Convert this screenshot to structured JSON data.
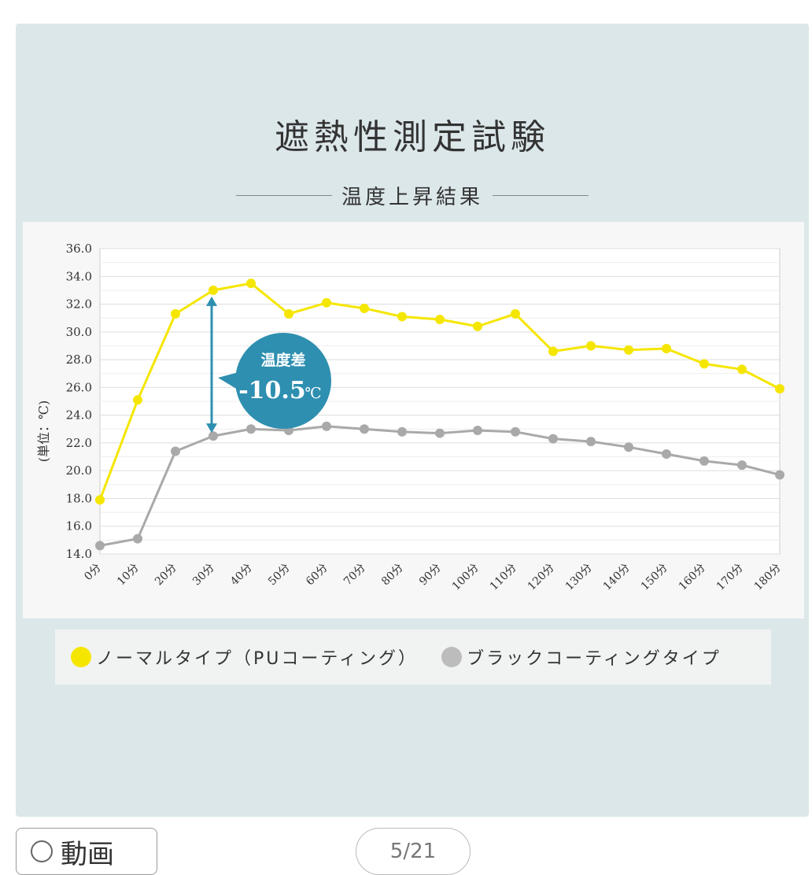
{
  "title": "遮熱性測定試験",
  "subtitle": "温度上昇結果",
  "annotation": {
    "label": "温度差",
    "value": "-10.5",
    "unit": "℃"
  },
  "legend": [
    {
      "label": "ノーマルタイプ（PUコーティング）",
      "color": "#f5e600"
    },
    {
      "label": "ブラックコーティングタイプ",
      "color": "#bcbcbc"
    }
  ],
  "bottom": {
    "video_button": "動画",
    "pager": "5/21"
  },
  "chart_data": {
    "type": "line",
    "ylabel": "(単位：℃)",
    "ylim": [
      14,
      36
    ],
    "yticks": [
      "14.0",
      "16.0",
      "18.0",
      "20.0",
      "22.0",
      "24.0",
      "26.0",
      "28.0",
      "30.0",
      "32.0",
      "34.0",
      "36.0"
    ],
    "categories": [
      "0分",
      "10分",
      "20分",
      "30分",
      "40分",
      "50分",
      "60分",
      "70分",
      "80分",
      "90分",
      "100分",
      "110分",
      "120分",
      "130分",
      "140分",
      "150分",
      "160分",
      "170分",
      "180分"
    ],
    "grid": true,
    "series": [
      {
        "name": "ノーマルタイプ（PUコーティング）",
        "color": "#f5e600",
        "values": [
          17.9,
          25.1,
          31.3,
          33.0,
          33.5,
          31.3,
          32.1,
          31.7,
          31.1,
          30.9,
          30.4,
          31.3,
          28.6,
          29.0,
          28.7,
          28.8,
          27.7,
          27.3,
          25.9
        ]
      },
      {
        "name": "ブラックコーティングタイプ",
        "color": "#a9a9a9",
        "values": [
          14.6,
          15.1,
          21.4,
          22.5,
          23.0,
          22.9,
          23.2,
          23.0,
          22.8,
          22.7,
          22.9,
          22.8,
          22.3,
          22.1,
          21.7,
          21.2,
          20.7,
          20.4,
          19.7
        ]
      }
    ]
  }
}
